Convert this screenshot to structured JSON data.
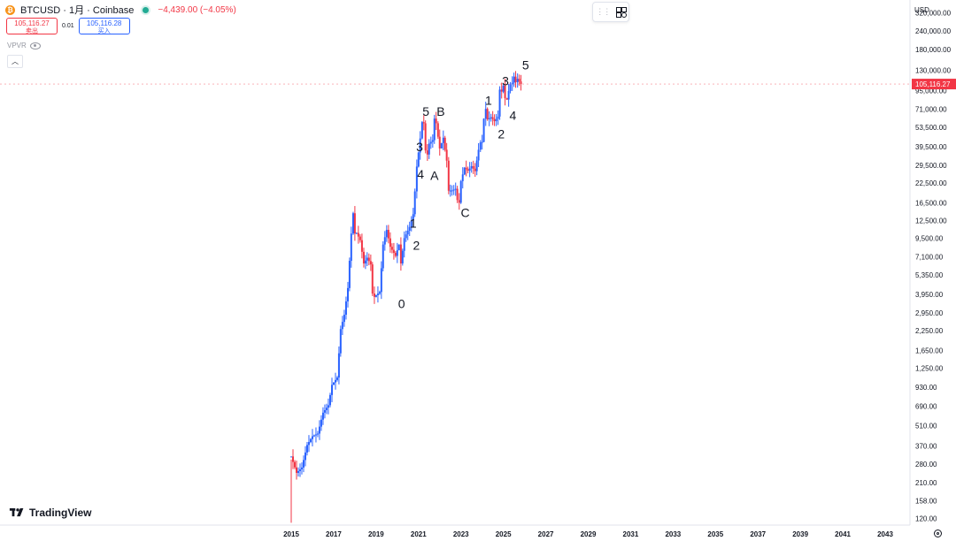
{
  "header": {
    "symbol": "BTCUSD · 1月 · Coinbase",
    "change": "−4,439.00 (−4.05%)",
    "icon": "bitcoin-icon"
  },
  "trade": {
    "sell_price": "105,116.27",
    "sell_label": "卖出",
    "spread": "0.01",
    "buy_price": "105,116.28",
    "buy_label": "买入"
  },
  "indicator": {
    "label": "VPVR"
  },
  "price_axis": {
    "unit": "USD",
    "current_price": "105,116.27"
  },
  "branding": {
    "logo_text": "TradingView"
  },
  "colors": {
    "up": "#2962ff",
    "down": "#f23645",
    "price_label_bg": "#f23645",
    "axis_text": "#131722"
  },
  "chart_data": {
    "type": "candlestick",
    "symbol": "BTCUSD",
    "interval": "1月",
    "exchange": "Coinbase",
    "y_scale": "log",
    "ylim": [
      108,
      390000
    ],
    "xlim": [
      2015.0,
      2044.0
    ],
    "yticks": [
      120,
      158,
      210,
      280,
      370,
      510,
      690,
      930,
      1250,
      1650,
      2250,
      2950,
      3950,
      5350,
      7100,
      9500,
      12500,
      16500,
      22500,
      29500,
      39500,
      53500,
      71000,
      95000,
      130000,
      180000,
      240000,
      320000
    ],
    "ytick_labels": [
      "120.00",
      "158.00",
      "210.00",
      "280.00",
      "370.00",
      "510.00",
      "690.00",
      "930.00",
      "1,250.00",
      "1,650.00",
      "2,250.00",
      "2,950.00",
      "3,950.00",
      "5,350.00",
      "7,100.00",
      "9,500.00",
      "12,500.00",
      "16,500.00",
      "22,500.00",
      "29,500.00",
      "39,500.00",
      "53,500.00",
      "71,000.00",
      "95,000.00",
      "130,000.00",
      "180,000.00",
      "240,000.00",
      "320,000.00"
    ],
    "xticks": [
      2015,
      2017,
      2019,
      2021,
      2023,
      2025,
      2027,
      2029,
      2031,
      2033,
      2035,
      2037,
      2039,
      2041,
      2043
    ],
    "xtick_labels": [
      "2015",
      "2017",
      "2019",
      "2021",
      "2023",
      "2025",
      "2027",
      "2029",
      "2031",
      "2033",
      "2035",
      "2037",
      "2039",
      "2041",
      "2043"
    ],
    "current_price": 105116.27,
    "closes": [
      [
        2015.0,
        315
      ],
      [
        2015.25,
        244
      ],
      [
        2015.5,
        265
      ],
      [
        2015.75,
        377
      ],
      [
        2016.0,
        432
      ],
      [
        2016.25,
        450
      ],
      [
        2016.5,
        624
      ],
      [
        2016.75,
        701
      ],
      [
        2016.92,
        963
      ],
      [
        2017.17,
        1079
      ],
      [
        2017.33,
        2300
      ],
      [
        2017.5,
        2875
      ],
      [
        2017.67,
        4360
      ],
      [
        2017.83,
        10200
      ],
      [
        2017.92,
        14000
      ],
      [
        2018.0,
        10200
      ],
      [
        2018.08,
        10300
      ],
      [
        2018.25,
        9200
      ],
      [
        2018.42,
        6400
      ],
      [
        2018.58,
        7000
      ],
      [
        2018.75,
        6300
      ],
      [
        2018.83,
        4000
      ],
      [
        2018.92,
        3800
      ],
      [
        2019.17,
        4100
      ],
      [
        2019.33,
        8600
      ],
      [
        2019.5,
        10800
      ],
      [
        2019.67,
        8300
      ],
      [
        2019.92,
        7200
      ],
      [
        2020.08,
        8600
      ],
      [
        2020.17,
        6400
      ],
      [
        2020.33,
        9500
      ],
      [
        2020.58,
        11300
      ],
      [
        2020.75,
        13800
      ],
      [
        2020.83,
        19700
      ],
      [
        2020.92,
        29000
      ],
      [
        2021.08,
        45000
      ],
      [
        2021.17,
        58000
      ],
      [
        2021.25,
        57000
      ],
      [
        2021.33,
        37300
      ],
      [
        2021.42,
        35000
      ],
      [
        2021.5,
        41500
      ],
      [
        2021.67,
        43800
      ],
      [
        2021.75,
        61300
      ],
      [
        2021.83,
        57000
      ],
      [
        2021.92,
        46200
      ],
      [
        2022.0,
        38500
      ],
      [
        2022.17,
        45500
      ],
      [
        2022.25,
        37700
      ],
      [
        2022.33,
        31800
      ],
      [
        2022.42,
        19900
      ],
      [
        2022.58,
        20000
      ],
      [
        2022.75,
        20500
      ],
      [
        2022.83,
        17200
      ],
      [
        2022.92,
        16500
      ],
      [
        2023.0,
        23100
      ],
      [
        2023.17,
        28500
      ],
      [
        2023.33,
        27200
      ],
      [
        2023.5,
        29200
      ],
      [
        2023.67,
        27000
      ],
      [
        2023.83,
        37700
      ],
      [
        2023.92,
        42300
      ],
      [
        2024.0,
        42600
      ],
      [
        2024.08,
        61200
      ],
      [
        2024.17,
        71300
      ],
      [
        2024.25,
        60600
      ],
      [
        2024.42,
        62700
      ],
      [
        2024.58,
        58900
      ],
      [
        2024.75,
        63300
      ],
      [
        2024.83,
        96400
      ],
      [
        2024.92,
        93400
      ],
      [
        2025.0,
        102400
      ],
      [
        2025.08,
        84300
      ],
      [
        2025.17,
        82500
      ],
      [
        2025.25,
        94200
      ],
      [
        2025.33,
        104600
      ],
      [
        2025.42,
        107100
      ],
      [
        2025.5,
        118000
      ],
      [
        2025.58,
        108200
      ],
      [
        2025.67,
        114000
      ],
      [
        2025.75,
        109500
      ],
      [
        2025.83,
        105116
      ]
    ],
    "annotations": [
      {
        "text": "0",
        "x": 2020.2,
        "y": 3200
      },
      {
        "text": "1",
        "x": 2020.75,
        "y": 11200
      },
      {
        "text": "2",
        "x": 2020.9,
        "y": 7900
      },
      {
        "text": "3",
        "x": 2021.05,
        "y": 37000
      },
      {
        "text": "4",
        "x": 2021.1,
        "y": 24000
      },
      {
        "text": "5",
        "x": 2021.35,
        "y": 64000
      },
      {
        "text": "A",
        "x": 2021.75,
        "y": 23500
      },
      {
        "text": "B",
        "x": 2022.05,
        "y": 64000
      },
      {
        "text": "C",
        "x": 2023.2,
        "y": 13200
      },
      {
        "text": "1",
        "x": 2024.3,
        "y": 76000
      },
      {
        "text": "2",
        "x": 2024.9,
        "y": 45000
      },
      {
        "text": "3",
        "x": 2025.1,
        "y": 103000
      },
      {
        "text": "4",
        "x": 2025.45,
        "y": 60000
      },
      {
        "text": "5",
        "x": 2026.05,
        "y": 132000
      }
    ]
  }
}
